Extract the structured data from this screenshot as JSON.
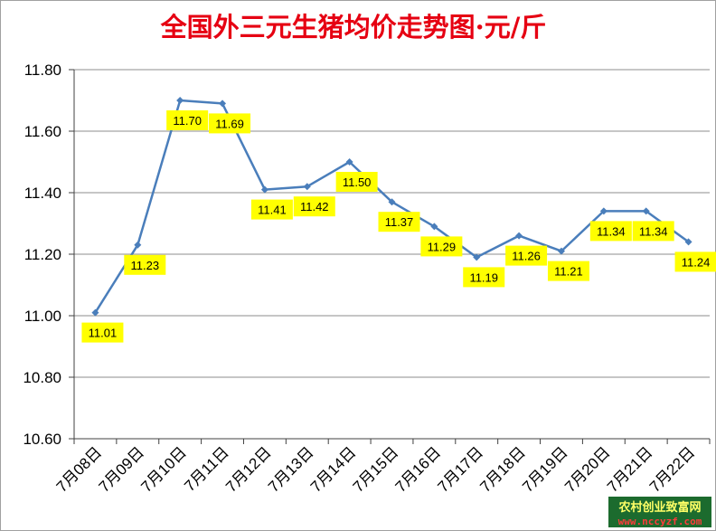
{
  "colors": {
    "title": "#e60012",
    "line": "#4a7ebb",
    "label_bg": "#ffff00",
    "grid": "#8c8c8c",
    "watermark_bg": "#1c6b2e",
    "watermark_text": "#ffff66",
    "watermark_url": "#ff3b3b"
  },
  "chart_data": {
    "type": "line",
    "title": "全国外三元生猪均价走势图·元/斤",
    "categories": [
      "7月08日",
      "7月09日",
      "7月10日",
      "7月11日",
      "7月12日",
      "7月13日",
      "7月14日",
      "7月15日",
      "7月16日",
      "7月17日",
      "7月18日",
      "7月19日",
      "7月20日",
      "7月21日",
      "7月22日"
    ],
    "values": [
      11.01,
      11.23,
      11.7,
      11.69,
      11.41,
      11.42,
      11.5,
      11.37,
      11.29,
      11.19,
      11.26,
      11.21,
      11.34,
      11.34,
      11.24
    ],
    "data_labels": [
      "11.01",
      "11.23",
      "11.70",
      "11.69",
      "11.41",
      "11.42",
      "11.50",
      "11.37",
      "11.29",
      "11.19",
      "11.26",
      "11.21",
      "11.34",
      "11.34",
      "11.24"
    ],
    "y_ticks": [
      "10.60",
      "10.80",
      "11.00",
      "11.20",
      "11.40",
      "11.60",
      "11.80"
    ],
    "y_tick_values": [
      10.6,
      10.8,
      11.0,
      11.2,
      11.4,
      11.6,
      11.8
    ],
    "ylim": [
      10.6,
      11.8
    ],
    "grid": true,
    "legend": "none"
  },
  "watermark": {
    "line1": "农村创业致富网",
    "line2": "www.nccyzf.com"
  }
}
